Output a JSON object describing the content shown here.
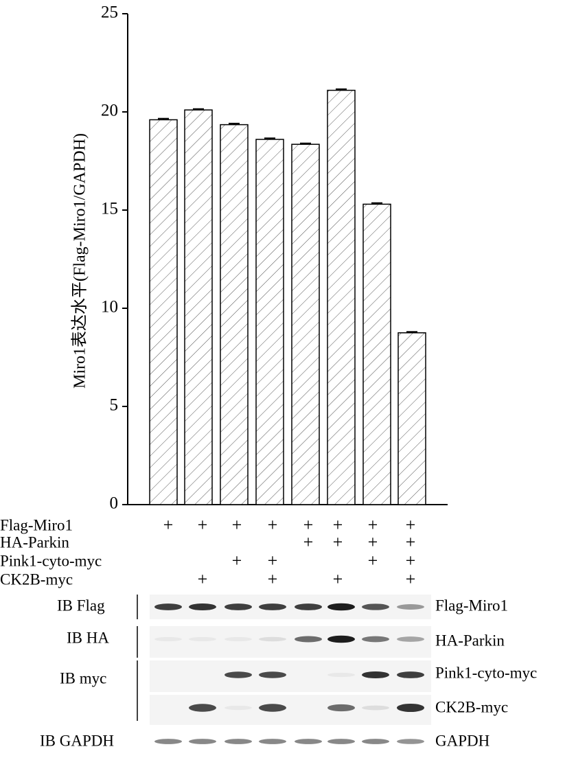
{
  "chart_data": {
    "type": "bar",
    "ylabel": "Miro1表达水平(Flag-Miro1/GAPDH)",
    "values": [
      19.6,
      20.1,
      19.35,
      18.6,
      18.35,
      21.1,
      15.3,
      8.75
    ],
    "errors": [
      0.06,
      0.05,
      0.06,
      0.06,
      0.05,
      0.06,
      0.06,
      0.05
    ],
    "ylim": [
      0,
      25
    ],
    "yticks": [
      0,
      5,
      10,
      15,
      20,
      25
    ],
    "color": "#ffffff",
    "hatch": "#555555"
  },
  "treatments": [
    {
      "label": "Flag-Miro1",
      "marks": [
        "+",
        "+",
        "+",
        "+",
        "+",
        "+",
        "+",
        "+"
      ]
    },
    {
      "label": "HA-Parkin",
      "marks": [
        null,
        null,
        null,
        null,
        "+",
        "+",
        "+",
        "+"
      ]
    },
    {
      "label": "Pink1-cyto-myc",
      "marks": [
        null,
        null,
        "+",
        "+",
        null,
        null,
        "+",
        "+"
      ]
    },
    {
      "label": "CK2B-myc",
      "marks": [
        null,
        "+",
        null,
        "+",
        null,
        "+",
        null,
        "+"
      ]
    }
  ],
  "blot": {
    "antibodies": [
      "IB Flag",
      "IB HA",
      "IB myc",
      "IB GAPDH"
    ],
    "proteins": [
      "Flag-Miro1",
      "HA-Parkin",
      "Pink1-cyto-myc",
      "CK2B-myc",
      "GAPDH"
    ]
  }
}
